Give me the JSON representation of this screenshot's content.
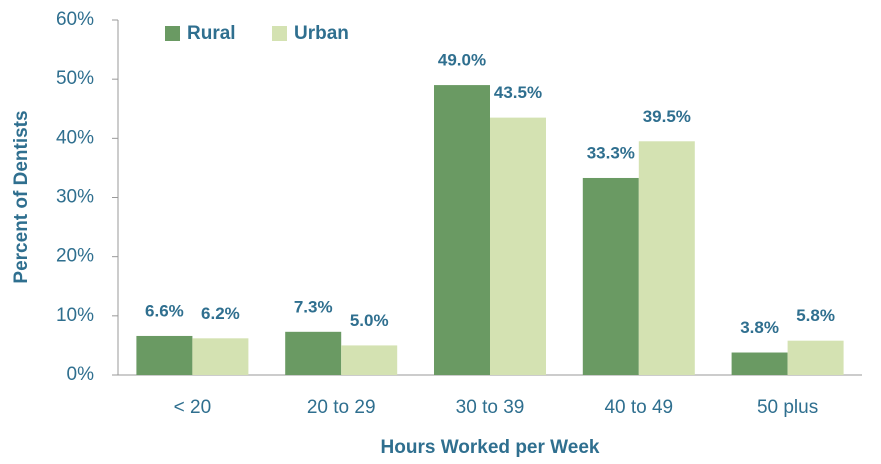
{
  "chart_data": {
    "type": "bar",
    "x_label": "Hours Worked per Week",
    "y_label": "Percent of Dentists",
    "categories": [
      "< 20",
      "20 to 29",
      "30 to 39",
      "40 to 49",
      "50 plus"
    ],
    "series": [
      {
        "name": "Rural",
        "color": "#6a9a63",
        "values": [
          6.6,
          7.3,
          49.0,
          33.3,
          3.8
        ],
        "value_labels": [
          "6.6%",
          "7.3%",
          "49.0%",
          "33.3%",
          "3.8%"
        ]
      },
      {
        "name": "Urban",
        "color": "#d4e2b2",
        "values": [
          6.2,
          5.0,
          43.5,
          39.5,
          5.8
        ],
        "value_labels": [
          "6.2%",
          "5.0%",
          "43.5%",
          "39.5%",
          "5.8%"
        ]
      }
    ],
    "ylim": [
      0,
      60
    ],
    "yticks": [
      {
        "value": 0,
        "label": "0%"
      },
      {
        "value": 10,
        "label": "10%"
      },
      {
        "value": 20,
        "label": "20%"
      },
      {
        "value": 30,
        "label": "30%"
      },
      {
        "value": 40,
        "label": "40%"
      },
      {
        "value": 50,
        "label": "50%"
      },
      {
        "value": 60,
        "label": "60%"
      }
    ],
    "legend": "top-left",
    "grid": false
  }
}
